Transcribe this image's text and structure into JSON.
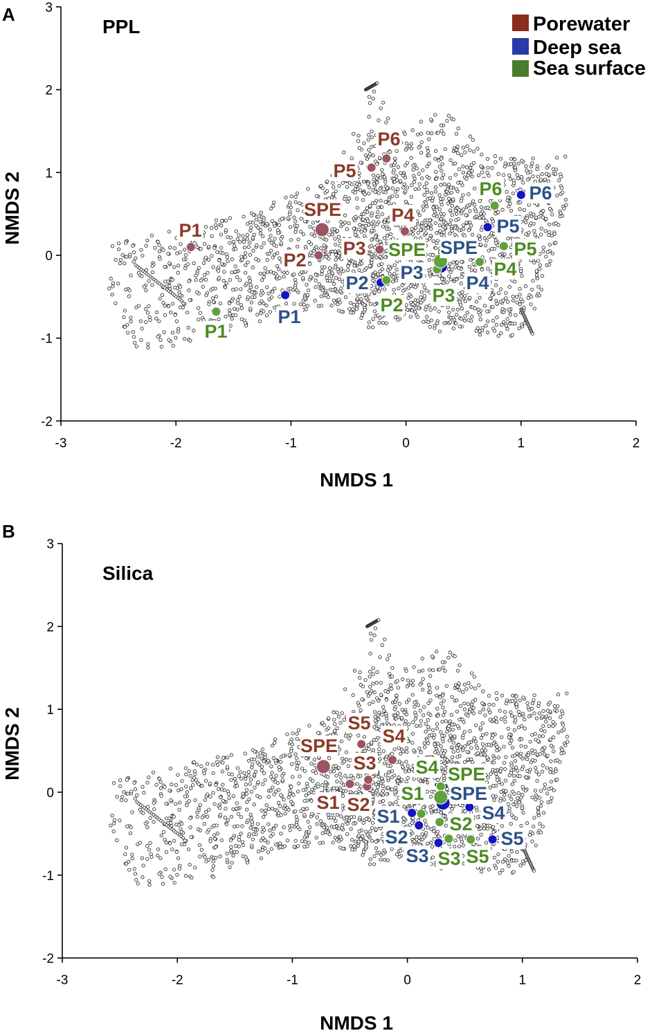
{
  "figure": {
    "panels": [
      "A",
      "B"
    ]
  },
  "legend": {
    "items": [
      {
        "label": "Porewater",
        "color": "#8b2c1f"
      },
      {
        "label": "Deep sea",
        "color": "#2a3aa8"
      },
      {
        "label": "Sea surface",
        "color": "#4a7c2a"
      }
    ]
  },
  "colors": {
    "porewater_text": "#8a3b28",
    "porewater_marker": "#9c5560",
    "deepsea_text": "#2d5189",
    "deepsea_marker": "#1414c0",
    "surface_text": "#4e8a25",
    "surface_marker": "#5fa13a"
  },
  "chart_data": [
    {
      "type": "scatter",
      "panel": "A",
      "title": "PPL",
      "xlabel": "NMDS 1",
      "ylabel": "NMDS 2",
      "xlim": [
        -3,
        2
      ],
      "ylim": [
        -2,
        3
      ],
      "xticks": [
        -3,
        -2,
        -1,
        0,
        1,
        2
      ],
      "yticks": [
        -2,
        -1,
        0,
        1,
        2,
        3
      ],
      "legend_position": "top-right",
      "background": "dense cloud of molecular-formula points (open circles)",
      "series": [
        {
          "name": "Porewater",
          "points": [
            {
              "label": "P1",
              "x": -1.87,
              "y": 0.1
            },
            {
              "label": "P2",
              "x": -0.76,
              "y": 0.0
            },
            {
              "label": "P3",
              "x": -0.23,
              "y": 0.07
            },
            {
              "label": "P4",
              "x": -0.01,
              "y": 0.29
            },
            {
              "label": "P5",
              "x": -0.3,
              "y": 1.06
            },
            {
              "label": "P6",
              "x": -0.17,
              "y": 1.17
            },
            {
              "label": "SPE",
              "x": -0.73,
              "y": 0.31
            }
          ]
        },
        {
          "name": "Deep sea",
          "points": [
            {
              "label": "P1",
              "x": -1.05,
              "y": -0.48
            },
            {
              "label": "P2",
              "x": -0.22,
              "y": -0.33
            },
            {
              "label": "P3",
              "x": 0.27,
              "y": -0.18
            },
            {
              "label": "P4",
              "x": 0.64,
              "y": -0.08
            },
            {
              "label": "P5",
              "x": 0.71,
              "y": 0.34
            },
            {
              "label": "P6",
              "x": 1.0,
              "y": 0.73
            },
            {
              "label": "SPE",
              "x": 0.3,
              "y": -0.13
            }
          ]
        },
        {
          "name": "Sea surface",
          "points": [
            {
              "label": "P1",
              "x": -1.65,
              "y": -0.68
            },
            {
              "label": "P2",
              "x": -0.17,
              "y": -0.3
            },
            {
              "label": "P3",
              "x": 0.27,
              "y": -0.17
            },
            {
              "label": "P4",
              "x": 0.64,
              "y": -0.08
            },
            {
              "label": "P5",
              "x": 0.85,
              "y": 0.11
            },
            {
              "label": "P6",
              "x": 0.77,
              "y": 0.6
            },
            {
              "label": "SPE",
              "x": 0.3,
              "y": -0.07
            }
          ]
        }
      ]
    },
    {
      "type": "scatter",
      "panel": "B",
      "title": "Silica",
      "xlabel": "NMDS 1",
      "ylabel": "NMDS 2",
      "xlim": [
        -3,
        2
      ],
      "ylim": [
        -2,
        3
      ],
      "xticks": [
        -3,
        -2,
        -1,
        0,
        1,
        2
      ],
      "yticks": [
        -2,
        -1,
        0,
        1,
        2,
        3
      ],
      "background": "dense cloud of molecular-formula points (open circles)",
      "series": [
        {
          "name": "Porewater",
          "points": [
            {
              "label": "S1",
              "x": -0.5,
              "y": 0.1
            },
            {
              "label": "S2",
              "x": -0.35,
              "y": 0.07
            },
            {
              "label": "S3",
              "x": -0.34,
              "y": 0.15
            },
            {
              "label": "S4",
              "x": -0.13,
              "y": 0.39
            },
            {
              "label": "S5",
              "x": -0.4,
              "y": 0.58
            },
            {
              "label": "SPE",
              "x": -0.73,
              "y": 0.31
            }
          ]
        },
        {
          "name": "Deep sea",
          "points": [
            {
              "label": "S1",
              "x": 0.04,
              "y": -0.25
            },
            {
              "label": "S2",
              "x": 0.1,
              "y": -0.4
            },
            {
              "label": "S3",
              "x": 0.27,
              "y": -0.61
            },
            {
              "label": "S4",
              "x": 0.54,
              "y": -0.18
            },
            {
              "label": "S5",
              "x": 0.74,
              "y": -0.57
            },
            {
              "label": "SPE",
              "x": 0.31,
              "y": -0.13
            }
          ]
        },
        {
          "name": "Sea surface",
          "points": [
            {
              "label": "S1",
              "x": 0.12,
              "y": -0.26
            },
            {
              "label": "S2",
              "x": 0.28,
              "y": -0.36
            },
            {
              "label": "S3",
              "x": 0.36,
              "y": -0.56
            },
            {
              "label": "S4",
              "x": 0.29,
              "y": 0.07
            },
            {
              "label": "S5",
              "x": 0.55,
              "y": -0.57
            },
            {
              "label": "SPE",
              "x": 0.29,
              "y": -0.06
            }
          ]
        }
      ]
    }
  ]
}
